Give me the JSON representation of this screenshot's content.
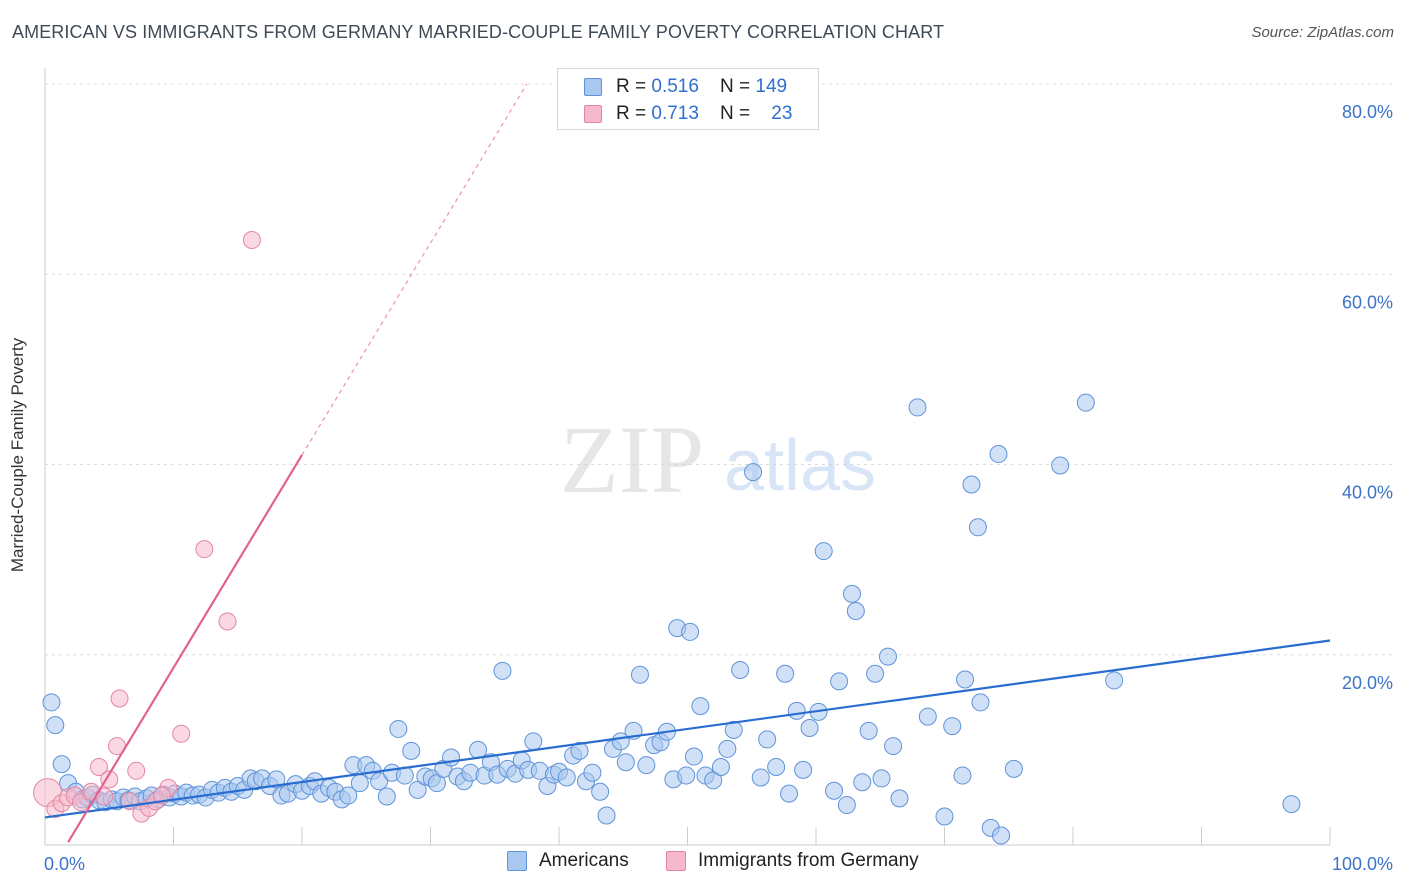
{
  "title": "AMERICAN VS IMMIGRANTS FROM GERMANY MARRIED-COUPLE FAMILY POVERTY CORRELATION CHART",
  "source": "Source: ZipAtlas.com",
  "watermark": {
    "zip": "ZIP",
    "atlas": "atlas"
  },
  "colors": {
    "americans_fill": "#a9c8f0",
    "americans_stroke": "#5f93d8",
    "americans_line": "#2a6dd0",
    "germany_fill": "#f5b9cb",
    "germany_stroke": "#e585a4",
    "germany_line": "#e2628f",
    "axis_label": "#3b73c9",
    "grid": "#dcdcdc"
  },
  "legend": {
    "rows": [
      {
        "r_label": "R = ",
        "r_value": "0.516",
        "n_label": "N = ",
        "n_value": "149"
      },
      {
        "r_label": "R = ",
        "r_value": "0.713",
        "n_label": "N = ",
        "n_value": "23"
      }
    ]
  },
  "bottom_legend": {
    "americans": "Americans",
    "germany": "Immigrants from Germany"
  },
  "chart_data": {
    "type": "scatter",
    "title": "AMERICAN VS IMMIGRANTS FROM GERMANY MARRIED-COUPLE FAMILY POVERTY CORRELATION CHART",
    "xlabel": "",
    "ylabel": "Married-Couple Family Poverty",
    "xlim": [
      0,
      100
    ],
    "ylim": [
      0,
      80
    ],
    "x_tick_labels": [
      "0.0%",
      "100.0%"
    ],
    "y_ticks": [
      20,
      40,
      60,
      80
    ],
    "y_tick_labels": [
      "20.0%",
      "40.0%",
      "60.0%",
      "80.0%"
    ],
    "grid": true,
    "legend_position": "top-center",
    "series": [
      {
        "name": "Americans",
        "r": 0.516,
        "n": 149,
        "trend": {
          "x": [
            0,
            100
          ],
          "y": [
            2.9,
            21.5
          ]
        },
        "points": [
          [
            0.5,
            15
          ],
          [
            0.8,
            12.6
          ],
          [
            1.3,
            8.5
          ],
          [
            1.8,
            6.5
          ],
          [
            2.4,
            5.6
          ],
          [
            2.9,
            4.8
          ],
          [
            3.3,
            5
          ],
          [
            3.7,
            5.3
          ],
          [
            4.2,
            4.7
          ],
          [
            4.7,
            4.5
          ],
          [
            5.2,
            4.8
          ],
          [
            5.6,
            4.6
          ],
          [
            6.1,
            5
          ],
          [
            6.5,
            4.7
          ],
          [
            7,
            5.1
          ],
          [
            7.4,
            4.6
          ],
          [
            7.9,
            4.9
          ],
          [
            8.3,
            5.2
          ],
          [
            8.8,
            4.8
          ],
          [
            9.2,
            5.3
          ],
          [
            9.7,
            5
          ],
          [
            10.1,
            5.4
          ],
          [
            10.6,
            5.1
          ],
          [
            11,
            5.5
          ],
          [
            11.5,
            5.2
          ],
          [
            12,
            5.3
          ],
          [
            12.5,
            5
          ],
          [
            13,
            5.8
          ],
          [
            13.5,
            5.5
          ],
          [
            14,
            6
          ],
          [
            14.5,
            5.6
          ],
          [
            15,
            6.2
          ],
          [
            15.5,
            5.8
          ],
          [
            16,
            7
          ],
          [
            16.4,
            6.7
          ],
          [
            16.9,
            7
          ],
          [
            17.5,
            6.2
          ],
          [
            18,
            6.9
          ],
          [
            18.4,
            5.2
          ],
          [
            18.9,
            5.4
          ],
          [
            19.5,
            6.4
          ],
          [
            20,
            5.7
          ],
          [
            20.6,
            6.2
          ],
          [
            21,
            6.7
          ],
          [
            21.5,
            5.4
          ],
          [
            22.1,
            6
          ],
          [
            22.6,
            5.6
          ],
          [
            23.1,
            4.8
          ],
          [
            23.6,
            5.2
          ],
          [
            24,
            8.4
          ],
          [
            24.5,
            6.5
          ],
          [
            25,
            8.4
          ],
          [
            25.5,
            7.8
          ],
          [
            26,
            6.7
          ],
          [
            26.6,
            5.1
          ],
          [
            27,
            7.6
          ],
          [
            27.5,
            12.2
          ],
          [
            28,
            7.3
          ],
          [
            28.5,
            9.9
          ],
          [
            29,
            5.8
          ],
          [
            29.6,
            7.2
          ],
          [
            30.1,
            7
          ],
          [
            30.5,
            6.5
          ],
          [
            31,
            8
          ],
          [
            31.6,
            9.2
          ],
          [
            32.1,
            7.2
          ],
          [
            32.6,
            6.7
          ],
          [
            33.1,
            7.6
          ],
          [
            33.7,
            10
          ],
          [
            34.2,
            7.3
          ],
          [
            34.7,
            8.7
          ],
          [
            35.2,
            7.4
          ],
          [
            35.6,
            18.3
          ],
          [
            36,
            8
          ],
          [
            36.6,
            7.5
          ],
          [
            37.1,
            8.9
          ],
          [
            37.6,
            7.9
          ],
          [
            38,
            10.9
          ],
          [
            38.5,
            7.8
          ],
          [
            39.1,
            6.2
          ],
          [
            39.6,
            7.4
          ],
          [
            40,
            7.7
          ],
          [
            40.6,
            7.1
          ],
          [
            41.1,
            9.4
          ],
          [
            41.6,
            9.9
          ],
          [
            42.1,
            6.7
          ],
          [
            42.6,
            7.6
          ],
          [
            43.2,
            5.6
          ],
          [
            43.7,
            3.1
          ],
          [
            44.2,
            10.1
          ],
          [
            44.8,
            10.9
          ],
          [
            45.2,
            8.7
          ],
          [
            45.8,
            12
          ],
          [
            46.3,
            17.9
          ],
          [
            46.8,
            8.4
          ],
          [
            47.4,
            10.5
          ],
          [
            47.9,
            10.8
          ],
          [
            48.4,
            11.9
          ],
          [
            48.9,
            6.9
          ],
          [
            49.2,
            22.8
          ],
          [
            49.9,
            7.3
          ],
          [
            50.5,
            9.3
          ],
          [
            50.2,
            22.4
          ],
          [
            51,
            14.6
          ],
          [
            51.4,
            7.3
          ],
          [
            52,
            6.8
          ],
          [
            52.6,
            8.2
          ],
          [
            53.1,
            10.1
          ],
          [
            53.6,
            12.1
          ],
          [
            54.1,
            18.4
          ],
          [
            55.1,
            39.2
          ],
          [
            55.7,
            7.1
          ],
          [
            56.2,
            11.1
          ],
          [
            56.9,
            8.2
          ],
          [
            57.6,
            18
          ],
          [
            57.9,
            5.4
          ],
          [
            58.5,
            14.1
          ],
          [
            59,
            7.9
          ],
          [
            59.5,
            12.3
          ],
          [
            60.2,
            14
          ],
          [
            60.6,
            30.9
          ],
          [
            61.4,
            5.7
          ],
          [
            61.8,
            17.2
          ],
          [
            62.4,
            4.2
          ],
          [
            62.8,
            26.4
          ],
          [
            63.1,
            24.6
          ],
          [
            63.6,
            6.6
          ],
          [
            64.1,
            12
          ],
          [
            64.6,
            18
          ],
          [
            65.1,
            7
          ],
          [
            65.6,
            19.8
          ],
          [
            66,
            10.4
          ],
          [
            66.5,
            4.9
          ],
          [
            67.9,
            46
          ],
          [
            68.7,
            13.5
          ],
          [
            70,
            3
          ],
          [
            70.6,
            12.5
          ],
          [
            71.4,
            7.3
          ],
          [
            71.6,
            17.4
          ],
          [
            72.1,
            37.9
          ],
          [
            72.6,
            33.4
          ],
          [
            72.8,
            15
          ],
          [
            73.6,
            1.8
          ],
          [
            74.2,
            41.1
          ],
          [
            74.4,
            1
          ],
          [
            75.4,
            8
          ],
          [
            79,
            39.9
          ],
          [
            81,
            46.5
          ],
          [
            83.2,
            17.3
          ],
          [
            97,
            4.3
          ]
        ]
      },
      {
        "name": "Immigrants from Germany",
        "r": 0.713,
        "n": 23,
        "trend": {
          "x": [
            1.8,
            20
          ],
          "y": [
            0.3,
            41
          ]
        },
        "trend_dashed_extension": {
          "x": [
            20,
            37.5
          ],
          "y": [
            41,
            80
          ]
        },
        "points": [
          [
            0.2,
            5.5
          ],
          [
            0.8,
            3.8
          ],
          [
            1.3,
            4.4
          ],
          [
            1.8,
            5
          ],
          [
            2.3,
            5.2
          ],
          [
            2.8,
            4.5
          ],
          [
            3.6,
            5.6
          ],
          [
            4.2,
            8.2
          ],
          [
            4.6,
            5.1
          ],
          [
            5,
            6.9
          ],
          [
            5.6,
            10.4
          ],
          [
            5.8,
            15.4
          ],
          [
            6.6,
            4.6
          ],
          [
            7.1,
            7.8
          ],
          [
            7.5,
            3.3
          ],
          [
            8.1,
            3.9
          ],
          [
            8.6,
            4.6
          ],
          [
            9.6,
            6
          ],
          [
            10.6,
            11.7
          ],
          [
            12.4,
            31.1
          ],
          [
            14.2,
            23.5
          ],
          [
            16.1,
            63.6
          ],
          [
            9.1,
            5.2
          ]
        ]
      }
    ]
  }
}
